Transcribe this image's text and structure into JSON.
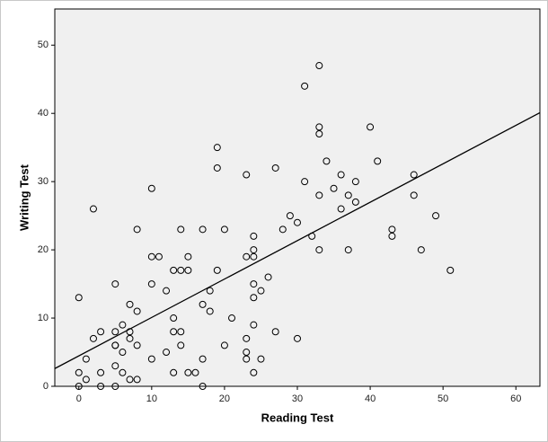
{
  "chart_data": {
    "type": "scatter",
    "x_label": "Reading Test",
    "y_label": "Writing Test",
    "x": [
      0,
      0,
      0,
      1,
      1,
      2,
      2,
      3,
      3,
      3,
      5,
      5,
      5,
      5,
      5,
      5,
      6,
      6,
      6,
      7,
      7,
      7,
      7,
      8,
      8,
      8,
      8,
      10,
      10,
      10,
      10,
      11,
      12,
      12,
      13,
      13,
      13,
      13,
      14,
      14,
      14,
      14,
      15,
      15,
      15,
      16,
      17,
      17,
      17,
      17,
      18,
      18,
      19,
      19,
      19,
      20,
      20,
      21,
      23,
      23,
      23,
      23,
      23,
      24,
      24,
      24,
      24,
      24,
      24,
      24,
      25,
      25,
      26,
      27,
      27,
      28,
      29,
      30,
      30,
      31,
      31,
      32,
      33,
      33,
      33,
      33,
      33,
      34,
      35,
      36,
      36,
      37,
      37,
      38,
      38,
      40,
      41,
      43,
      43,
      46,
      46,
      47,
      49,
      51
    ],
    "values": [
      13,
      2,
      0,
      4,
      1,
      26,
      7,
      8,
      2,
      0,
      15,
      8,
      6,
      6,
      3,
      0,
      9,
      5,
      2,
      12,
      8,
      7,
      1,
      23,
      11,
      6,
      1,
      29,
      19,
      15,
      4,
      19,
      14,
      5,
      17,
      10,
      8,
      2,
      23,
      17,
      8,
      6,
      19,
      17,
      2,
      2,
      23,
      12,
      4,
      0,
      14,
      11,
      35,
      32,
      17,
      23,
      6,
      10,
      31,
      19,
      7,
      5,
      4,
      22,
      20,
      19,
      15,
      13,
      9,
      2,
      14,
      4,
      16,
      32,
      8,
      23,
      25,
      24,
      7,
      44,
      30,
      22,
      47,
      38,
      37,
      28,
      20,
      33,
      29,
      31,
      26,
      28,
      20,
      30,
      27,
      38,
      33,
      23,
      22,
      31,
      28,
      20,
      25,
      17
    ],
    "marker_color": "#000000",
    "fit_line": {
      "x": [
        -3.3,
        63.3
      ],
      "y": [
        2.6,
        40.1
      ],
      "color": "#000000"
    },
    "xlim": [
      -3.3,
      63.3
    ],
    "ylim": [
      0,
      55.3
    ],
    "xticks": [
      0,
      10,
      20,
      30,
      40,
      50,
      60
    ],
    "yticks": [
      0,
      10,
      20,
      30,
      40,
      50
    ],
    "grid": false
  }
}
